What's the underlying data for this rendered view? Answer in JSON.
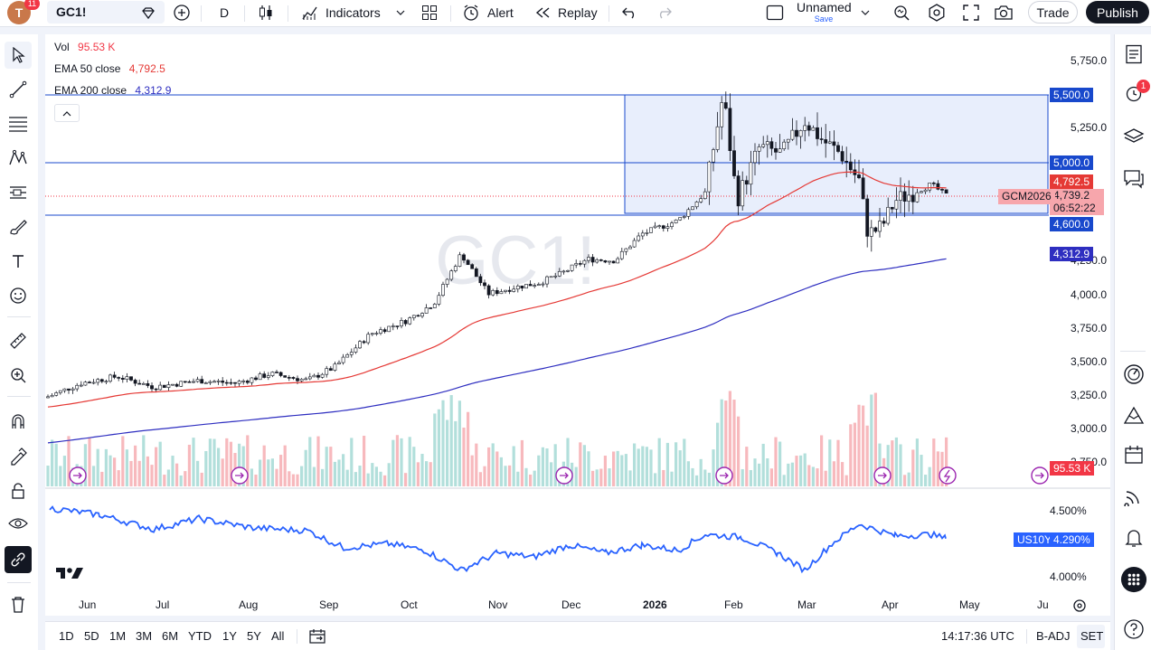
{
  "topbar": {
    "avatar_letter": "T",
    "avatar_badge": "11",
    "symbol": "GC1!",
    "interval": "D",
    "indicators_label": "Indicators",
    "alert_label": "Alert",
    "replay_label": "Replay",
    "layout_name": "Unnamed",
    "layout_save": "Save",
    "trade_label": "Trade",
    "publish_label": "Publish"
  },
  "legend": {
    "vol_label": "Vol",
    "vol_value": "95.53 K",
    "ema50_label": "EMA 50 close",
    "ema50_value": "4,792.5",
    "ema200_label": "EMA 200 close",
    "ema200_value": "4,312.9"
  },
  "watermark": "GC1!",
  "price_axis": [
    "5,750.0",
    "5,250.0",
    "4,000.0",
    "3,750.0",
    "3,500.0",
    "3,250.0",
    "3,000.0",
    "2,750.0",
    "4,250.0"
  ],
  "price_tags": {
    "h5500": "5,500.0",
    "h5000": "5,000.0",
    "ema50": "4,792.5",
    "last": "4,739.2",
    "countdown": "06:52:22",
    "h4600": "4,600.0",
    "ema200": "4,312.9",
    "vol": "95.53 K",
    "last_symbol": "GCM2026"
  },
  "lower_pane": {
    "symbol_tag": "US10Y",
    "value_tag": "4.290%",
    "axis": [
      "4.500%",
      "4.000%"
    ]
  },
  "time_axis": [
    "Jun",
    "Jul",
    "Aug",
    "Sep",
    "Oct",
    "Nov",
    "Dec",
    "2026",
    "Feb",
    "Mar",
    "Apr",
    "May",
    "Ju"
  ],
  "bottombar": {
    "ranges": [
      "1D",
      "5D",
      "1M",
      "3M",
      "6M",
      "YTD",
      "1Y",
      "5Y",
      "All"
    ],
    "clock": "14:17:36 UTC",
    "badj": "B-ADJ",
    "session": "SET"
  },
  "right_badge": "1",
  "colors": {
    "up": "#089981",
    "down": "#f23645",
    "ema50": "#e53935",
    "ema200": "#2e2ec0",
    "hline": "#1848cc",
    "us10y": "#2962ff",
    "rect_fill": "#e8eefc",
    "vol_up": "#b2dfdb",
    "vol_down": "#f7b9bd"
  },
  "chart_data": {
    "type": "candlestick",
    "title": "GC1!",
    "interval": "D",
    "x": [
      "Jun",
      "Jul",
      "Aug",
      "Sep",
      "Oct",
      "Nov",
      "Dec",
      "2026",
      "Feb",
      "Mar",
      "Apr",
      "May"
    ],
    "ylim": [
      2750,
      5800
    ],
    "horizontal_levels": [
      5500,
      5000,
      4600
    ],
    "last_price": 4739.2,
    "ema50_last": 4792.5,
    "ema200_last": 4312.9,
    "volume_last": "95.53 K",
    "secondary_series": {
      "name": "US10Y",
      "last": 4.29,
      "ylim": [
        3.95,
        4.6
      ]
    },
    "legend_placement": "top-left"
  }
}
